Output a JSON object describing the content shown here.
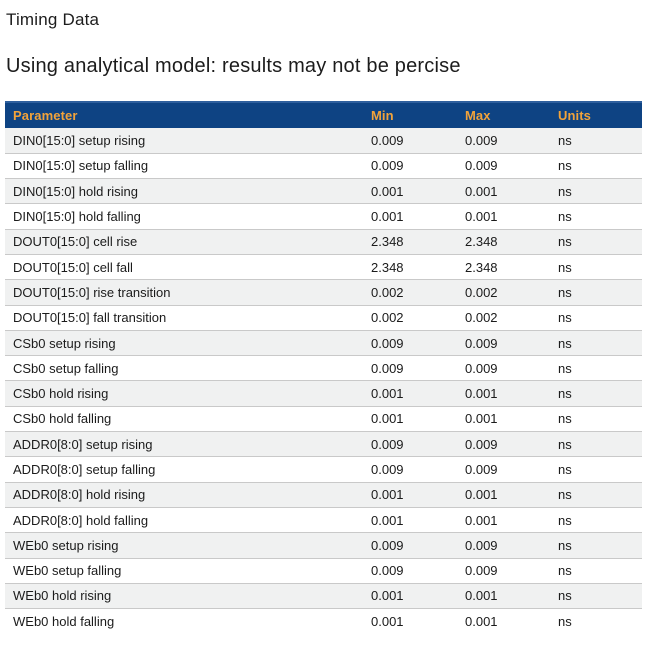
{
  "page": {
    "title": "Timing Data",
    "subtitle": "Using analytical model: results may not be percise"
  },
  "table": {
    "columns": [
      "Parameter",
      "Min",
      "Max",
      "Units"
    ],
    "rows": [
      {
        "parameter": "DIN0[15:0] setup rising",
        "min": "0.009",
        "max": "0.009",
        "units": "ns"
      },
      {
        "parameter": "DIN0[15:0] setup falling",
        "min": "0.009",
        "max": "0.009",
        "units": "ns"
      },
      {
        "parameter": "DIN0[15:0] hold rising",
        "min": "0.001",
        "max": "0.001",
        "units": "ns"
      },
      {
        "parameter": "DIN0[15:0] hold falling",
        "min": "0.001",
        "max": "0.001",
        "units": "ns"
      },
      {
        "parameter": "DOUT0[15:0] cell rise",
        "min": "2.348",
        "max": "2.348",
        "units": "ns"
      },
      {
        "parameter": "DOUT0[15:0] cell fall",
        "min": "2.348",
        "max": "2.348",
        "units": "ns"
      },
      {
        "parameter": "DOUT0[15:0] rise transition",
        "min": "0.002",
        "max": "0.002",
        "units": "ns"
      },
      {
        "parameter": "DOUT0[15:0] fall transition",
        "min": "0.002",
        "max": "0.002",
        "units": "ns"
      },
      {
        "parameter": "CSb0 setup rising",
        "min": "0.009",
        "max": "0.009",
        "units": "ns"
      },
      {
        "parameter": "CSb0 setup falling",
        "min": "0.009",
        "max": "0.009",
        "units": "ns"
      },
      {
        "parameter": "CSb0 hold rising",
        "min": "0.001",
        "max": "0.001",
        "units": "ns"
      },
      {
        "parameter": "CSb0 hold falling",
        "min": "0.001",
        "max": "0.001",
        "units": "ns"
      },
      {
        "parameter": "ADDR0[8:0] setup rising",
        "min": "0.009",
        "max": "0.009",
        "units": "ns"
      },
      {
        "parameter": "ADDR0[8:0] setup falling",
        "min": "0.009",
        "max": "0.009",
        "units": "ns"
      },
      {
        "parameter": "ADDR0[8:0] hold rising",
        "min": "0.001",
        "max": "0.001",
        "units": "ns"
      },
      {
        "parameter": "ADDR0[8:0] hold falling",
        "min": "0.001",
        "max": "0.001",
        "units": "ns"
      },
      {
        "parameter": "WEb0 setup rising",
        "min": "0.009",
        "max": "0.009",
        "units": "ns"
      },
      {
        "parameter": "WEb0 setup falling",
        "min": "0.009",
        "max": "0.009",
        "units": "ns"
      },
      {
        "parameter": "WEb0 hold rising",
        "min": "0.001",
        "max": "0.001",
        "units": "ns"
      },
      {
        "parameter": "WEb0 hold falling",
        "min": "0.001",
        "max": "0.001",
        "units": "ns"
      }
    ]
  },
  "colors": {
    "header_bg": "#0e4383",
    "header_top_edge": "#2e5f9d",
    "header_text": "#f2a33a",
    "alt_row_bg": "#f0f1f1",
    "row_border": "#c9c9c9",
    "body_text": "#1b1b1b"
  }
}
